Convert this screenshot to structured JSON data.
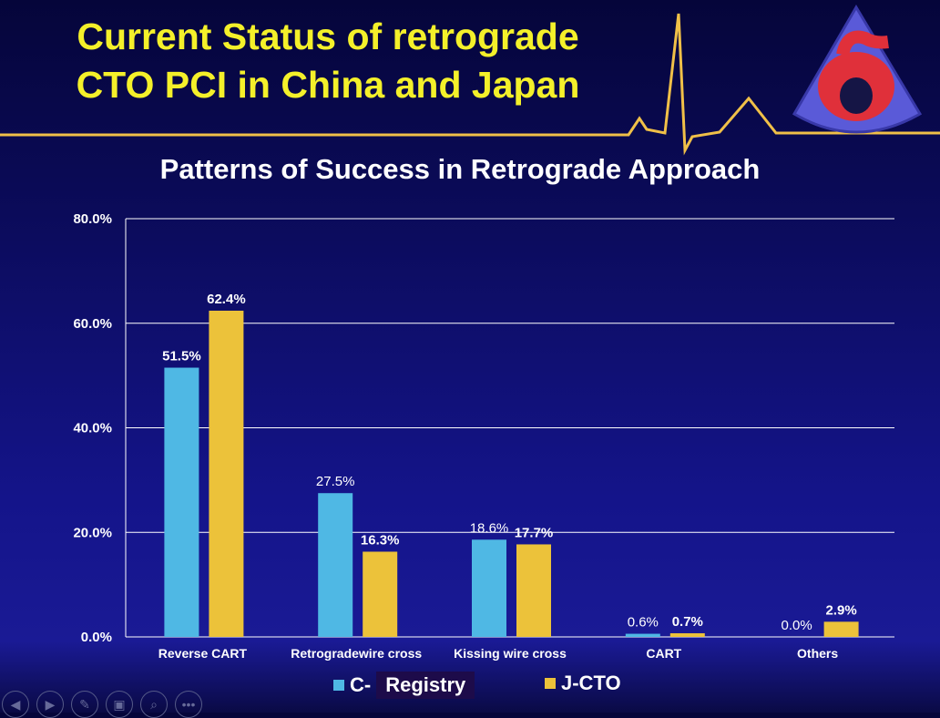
{
  "slide": {
    "title_line1": "Current Status of retrograde",
    "title_line2": "CTO PCI in China and  Japan"
  },
  "legend": {
    "c_prefix": "C-",
    "c_registry": "Registry",
    "j": "J-CTO"
  },
  "colors": {
    "c": "#4fb8e4",
    "j": "#ecc23a",
    "title": "#f4f02a"
  },
  "nav": [
    "prev-icon",
    "next-icon",
    "pen-icon",
    "slides-icon",
    "zoom-icon",
    "more-icon"
  ],
  "nav_glyphs": [
    "◀",
    "▶",
    "✎",
    "▣",
    "⌕",
    "•••"
  ],
  "chart_data": {
    "type": "bar",
    "title": "Patterns of Success in Retrograde Approach",
    "categories": [
      "Reverse CART",
      "Retrogradewire cross",
      "Kissing wire cross",
      "CART",
      "Others"
    ],
    "series": [
      {
        "name": "C-Registry",
        "values": [
          51.5,
          27.5,
          18.6,
          0.6,
          0.0
        ],
        "labels": [
          "51.5%",
          "27.5%",
          "18.6%",
          "0.6%",
          "0.0%"
        ]
      },
      {
        "name": "J-CTO",
        "values": [
          62.4,
          16.3,
          17.7,
          0.7,
          2.9
        ],
        "labels": [
          "62.4%",
          "16.3%",
          "17.7%",
          "0.7%",
          "2.9%"
        ]
      }
    ],
    "yticks": [
      "0.0%",
      "20.0%",
      "40.0%",
      "60.0%",
      "80.0%"
    ],
    "ylim": [
      0,
      80
    ],
    "grid": true,
    "legend": "bottom"
  }
}
